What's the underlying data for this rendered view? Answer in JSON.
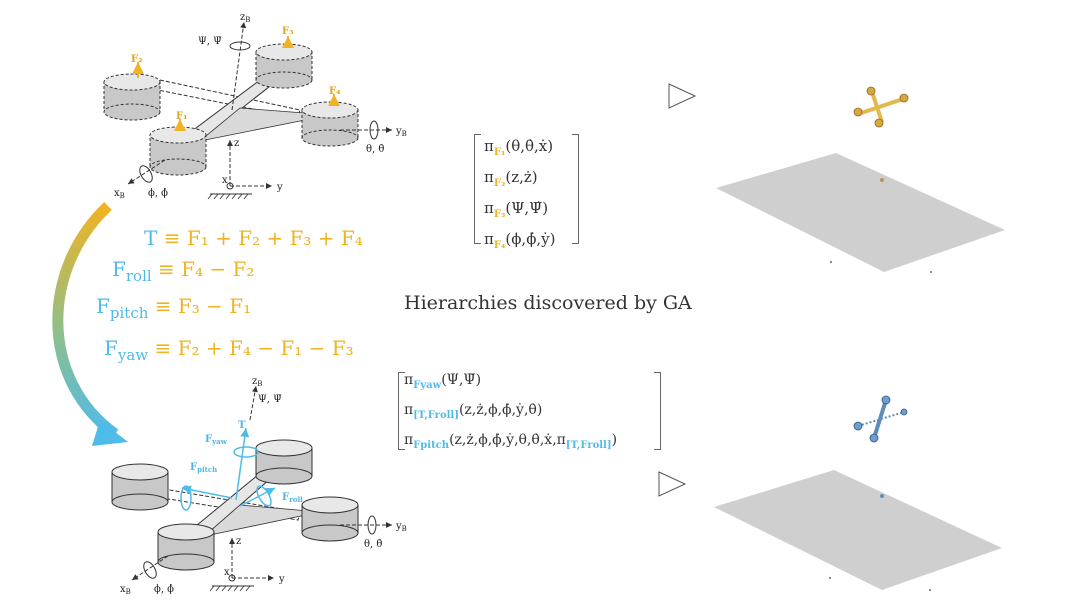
{
  "caption": "Hierarchies discovered by GA",
  "equations": [
    {
      "lhs": "T",
      "lhs_sub": "",
      "rhs": "≡ F₁ + F₂ + F₃ + F₄"
    },
    {
      "lhs": "F",
      "lhs_sub": "roll",
      "rhs": "≡ F₄ − F₂"
    },
    {
      "lhs": "F",
      "lhs_sub": "pitch",
      "rhs": "≡ F₃ − F₁"
    },
    {
      "lhs": "F",
      "lhs_sub": "yaw",
      "rhs": "≡ F₂ + F₄ − F₁ − F₃"
    }
  ],
  "top_matrix": [
    {
      "pi": "π",
      "sub": "F₁",
      "args": "(θ,θ̇,ẋ)"
    },
    {
      "pi": "π",
      "sub": "F₂",
      "args": "(z,ż)"
    },
    {
      "pi": "π",
      "sub": "F₃",
      "args": "(Ψ,Ψ̇)"
    },
    {
      "pi": "π",
      "sub": "F₄",
      "args": "(ϕ,ϕ̇,ẏ)"
    }
  ],
  "bottom_matrix": [
    {
      "pi": "π",
      "sub": "Fyaw",
      "args": "(Ψ,Ψ̇)"
    },
    {
      "pi": "π",
      "sub": "[T,Froll]",
      "args": "(z,ż,ϕ,ϕ̇,ẏ,θ̇)"
    },
    {
      "pi": "π",
      "sub": "Fpitch",
      "args": "(z,ż,ϕ,ϕ̇,ẏ,θ,θ̇,ẋ,π",
      "sub2": "[T,Froll]",
      "args2": ")"
    }
  ],
  "top_diagram": {
    "forces": [
      "F₁",
      "F₂",
      "F₃",
      "F₄"
    ],
    "axes": {
      "zB": "z",
      "zB_sub": "B",
      "yB": "y",
      "yB_sub": "B",
      "xB": "x",
      "xB_sub": "B",
      "z": "z",
      "y": "y",
      "x": "x",
      "psi": "Ψ, Ψ̇",
      "theta": "θ, θ̇",
      "phi": "ϕ, ϕ̇"
    }
  },
  "bottom_diagram": {
    "forces": {
      "T": "T",
      "yaw": "F",
      "yaw_sub": "yaw",
      "pitch": "F",
      "pitch_sub": "pitch",
      "roll": "F",
      "roll_sub": "roll"
    },
    "axes": {
      "zB": "z",
      "zB_sub": "B",
      "yB": "y",
      "yB_sub": "B",
      "xB": "x",
      "xB_sub": "B",
      "z": "z",
      "y": "y",
      "x": "x",
      "psi": "Ψ, Ψ̇",
      "theta": "θ, θ̇",
      "phi": "ϕ, ϕ̇"
    }
  },
  "colors": {
    "orange": "#f0b323",
    "blue": "#4fbbe9",
    "plane": "#cfcfcf"
  }
}
